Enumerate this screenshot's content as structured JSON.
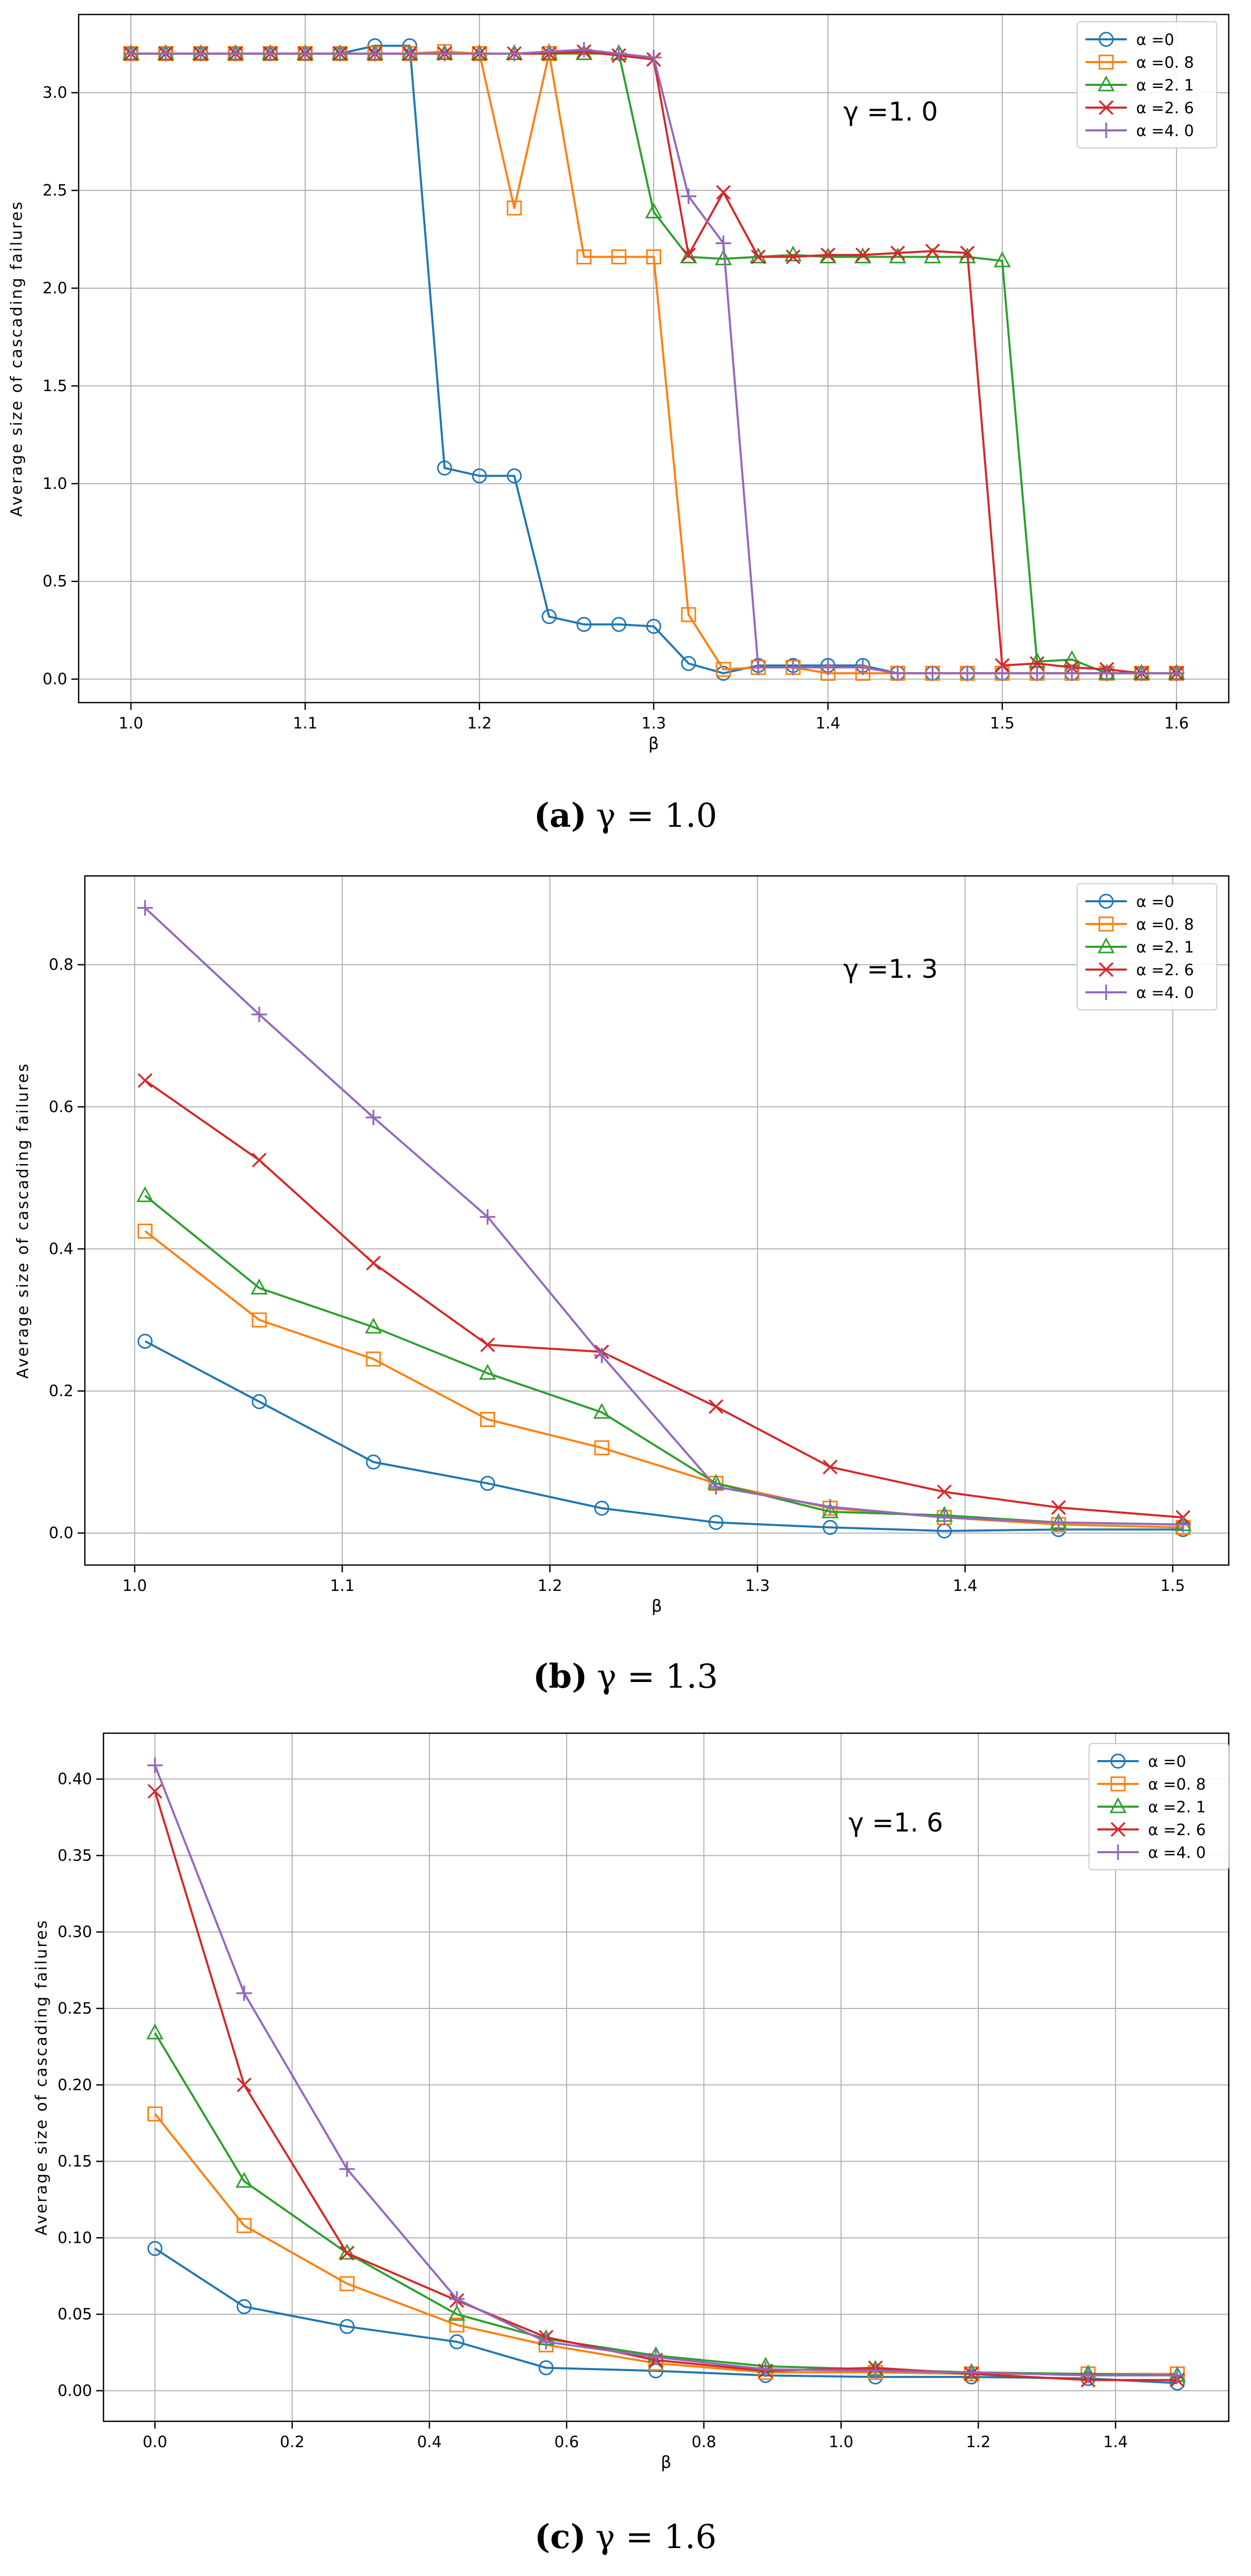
{
  "chart_data": [
    {
      "type": "line",
      "caption": {
        "label": "(a)",
        "text": "γ = 1.0"
      },
      "annotation": "γ =1. 0",
      "xlabel": "β",
      "ylabel": "Average size of cascading failures",
      "xlim": [
        0.97,
        1.63
      ],
      "ylim": [
        -0.12,
        3.4
      ],
      "xticks": [
        1.0,
        1.1,
        1.2,
        1.3,
        1.4,
        1.5,
        1.6
      ],
      "xtick_labels": [
        "1.0",
        "1.1",
        "1.2",
        "1.3",
        "1.4",
        "1.5",
        "1.6"
      ],
      "yticks": [
        0.0,
        0.5,
        1.0,
        1.5,
        2.0,
        2.5,
        3.0
      ],
      "ytick_labels": [
        "0.0",
        "0.5",
        "1.0",
        "1.5",
        "2.0",
        "2.5",
        "3.0"
      ],
      "grid": true,
      "legend_position": "top-right",
      "x": [
        1.0,
        1.02,
        1.04,
        1.06,
        1.08,
        1.1,
        1.12,
        1.14,
        1.16,
        1.18,
        1.2,
        1.22,
        1.24,
        1.26,
        1.28,
        1.3,
        1.32,
        1.34,
        1.36,
        1.38,
        1.4,
        1.42,
        1.44,
        1.46,
        1.48,
        1.5,
        1.52,
        1.54,
        1.56,
        1.58,
        1.6
      ],
      "series": [
        {
          "name": "α =0",
          "color": "#1f77b4",
          "marker": "circle",
          "values": [
            3.2,
            3.2,
            3.2,
            3.2,
            3.2,
            3.2,
            3.2,
            3.24,
            3.24,
            1.08,
            1.04,
            1.04,
            0.32,
            0.28,
            0.28,
            0.27,
            0.08,
            0.03,
            0.07,
            0.07,
            0.07,
            0.07,
            0.03,
            0.03,
            0.03,
            0.03,
            0.03,
            0.03,
            0.03,
            0.03,
            0.03
          ]
        },
        {
          "name": "α =0. 8",
          "color": "#ff7f0e",
          "marker": "square",
          "values": [
            3.2,
            3.2,
            3.2,
            3.2,
            3.2,
            3.2,
            3.2,
            3.2,
            3.2,
            3.21,
            3.2,
            2.41,
            3.2,
            2.16,
            2.16,
            2.16,
            0.33,
            0.05,
            0.06,
            0.06,
            0.03,
            0.03,
            0.03,
            0.03,
            0.03,
            0.03,
            0.03,
            0.03,
            0.03,
            0.03,
            0.03
          ]
        },
        {
          "name": "α =2. 1",
          "color": "#2ca02c",
          "marker": "triangle",
          "values": [
            3.2,
            3.2,
            3.2,
            3.2,
            3.2,
            3.2,
            3.2,
            3.2,
            3.2,
            3.2,
            3.2,
            3.2,
            3.2,
            3.2,
            3.2,
            2.39,
            2.16,
            2.15,
            2.16,
            2.17,
            2.16,
            2.16,
            2.16,
            2.16,
            2.16,
            2.14,
            0.09,
            0.1,
            0.03,
            0.03,
            0.03
          ]
        },
        {
          "name": "α =2. 6",
          "color": "#d62728",
          "marker": "x",
          "values": [
            3.2,
            3.2,
            3.2,
            3.2,
            3.2,
            3.2,
            3.2,
            3.2,
            3.2,
            3.2,
            3.2,
            3.2,
            3.2,
            3.21,
            3.19,
            3.17,
            2.17,
            2.49,
            2.16,
            2.16,
            2.17,
            2.17,
            2.18,
            2.19,
            2.18,
            0.07,
            0.08,
            0.06,
            0.05,
            0.03,
            0.03
          ]
        },
        {
          "name": "α =4. 0",
          "color": "#9467bd",
          "marker": "plus",
          "values": [
            3.2,
            3.2,
            3.2,
            3.2,
            3.2,
            3.2,
            3.2,
            3.2,
            3.2,
            3.2,
            3.2,
            3.2,
            3.21,
            3.22,
            3.2,
            3.18,
            2.47,
            2.23,
            0.06,
            0.06,
            0.06,
            0.06,
            0.03,
            0.03,
            0.03,
            0.03,
            0.03,
            0.03,
            0.03,
            0.03,
            0.03
          ]
        }
      ]
    },
    {
      "type": "line",
      "caption": {
        "label": "(b)",
        "text": "γ = 1.3"
      },
      "annotation": "γ =1. 3",
      "xlabel": "β",
      "ylabel": "Average size of cascading failures",
      "xlim": [
        0.976,
        1.527
      ],
      "ylim": [
        -0.045,
        0.925
      ],
      "xticks": [
        1.0,
        1.1,
        1.2,
        1.3,
        1.4,
        1.5
      ],
      "xtick_labels": [
        "1.0",
        "1.1",
        "1.2",
        "1.3",
        "1.4",
        "1.5"
      ],
      "yticks": [
        0.0,
        0.2,
        0.4,
        0.6,
        0.8
      ],
      "ytick_labels": [
        "0.0",
        "0.2",
        "0.4",
        "0.6",
        "0.8"
      ],
      "grid": true,
      "legend_position": "top-right",
      "x": [
        1.005,
        1.06,
        1.115,
        1.17,
        1.225,
        1.28,
        1.335,
        1.39,
        1.445,
        1.505
      ],
      "series": [
        {
          "name": "α =0",
          "color": "#1f77b4",
          "marker": "circle",
          "values": [
            0.27,
            0.185,
            0.1,
            0.07,
            0.035,
            0.015,
            0.008,
            0.003,
            0.005,
            0.005
          ]
        },
        {
          "name": "α =0. 8",
          "color": "#ff7f0e",
          "marker": "square",
          "values": [
            0.425,
            0.3,
            0.245,
            0.16,
            0.12,
            0.07,
            0.035,
            0.022,
            0.012,
            0.008
          ]
        },
        {
          "name": "α =2. 1",
          "color": "#2ca02c",
          "marker": "triangle",
          "values": [
            0.475,
            0.345,
            0.29,
            0.225,
            0.17,
            0.07,
            0.03,
            0.025,
            0.015,
            0.012
          ]
        },
        {
          "name": "α =2. 6",
          "color": "#d62728",
          "marker": "x",
          "values": [
            0.637,
            0.525,
            0.38,
            0.265,
            0.255,
            0.178,
            0.093,
            0.058,
            0.036,
            0.022
          ]
        },
        {
          "name": "α =4. 0",
          "color": "#9467bd",
          "marker": "plus",
          "values": [
            0.88,
            0.73,
            0.585,
            0.445,
            0.25,
            0.065,
            0.037,
            0.022,
            0.015,
            0.012
          ]
        }
      ]
    },
    {
      "type": "line",
      "caption": {
        "label": "(c)",
        "text": "γ = 1.6"
      },
      "annotation": "γ =1. 6",
      "xlabel": "β",
      "ylabel": "Average size of cascading failures",
      "xlim": [
        -0.075,
        1.565
      ],
      "ylim": [
        -0.02,
        0.43
      ],
      "xticks": [
        0.0,
        0.2,
        0.4,
        0.6,
        0.8,
        1.0,
        1.2,
        1.4
      ],
      "xtick_labels": [
        "0.0",
        "0.2",
        "0.4",
        "0.6",
        "0.8",
        "1.0",
        "1.2",
        "1.4"
      ],
      "yticks": [
        0.0,
        0.05,
        0.1,
        0.15,
        0.2,
        0.25,
        0.3,
        0.35,
        0.4
      ],
      "ytick_labels": [
        "0.00",
        "0.05",
        "0.10",
        "0.15",
        "0.20",
        "0.25",
        "0.30",
        "0.35",
        "0.40"
      ],
      "grid": true,
      "legend_position": "top-right",
      "x": [
        0.0,
        0.13,
        0.28,
        0.44,
        0.57,
        0.73,
        0.89,
        1.05,
        1.19,
        1.36,
        1.49
      ],
      "series": [
        {
          "name": "α =0",
          "color": "#1f77b4",
          "marker": "circle",
          "values": [
            0.093,
            0.055,
            0.042,
            0.032,
            0.015,
            0.013,
            0.01,
            0.009,
            0.009,
            0.008,
            0.005
          ]
        },
        {
          "name": "α =0. 8",
          "color": "#ff7f0e",
          "marker": "square",
          "values": [
            0.181,
            0.108,
            0.07,
            0.043,
            0.03,
            0.018,
            0.012,
            0.012,
            0.011,
            0.011,
            0.011
          ]
        },
        {
          "name": "α =2. 1",
          "color": "#2ca02c",
          "marker": "triangle",
          "values": [
            0.234,
            0.137,
            0.09,
            0.05,
            0.034,
            0.023,
            0.016,
            0.014,
            0.012,
            0.011,
            0.01
          ]
        },
        {
          "name": "α =2. 6",
          "color": "#d62728",
          "marker": "x",
          "values": [
            0.392,
            0.2,
            0.09,
            0.059,
            0.035,
            0.02,
            0.013,
            0.015,
            0.011,
            0.007,
            0.007
          ]
        },
        {
          "name": "α =4. 0",
          "color": "#9467bd",
          "marker": "plus",
          "values": [
            0.409,
            0.26,
            0.145,
            0.06,
            0.032,
            0.022,
            0.014,
            0.013,
            0.012,
            0.01,
            0.01
          ]
        }
      ]
    }
  ]
}
